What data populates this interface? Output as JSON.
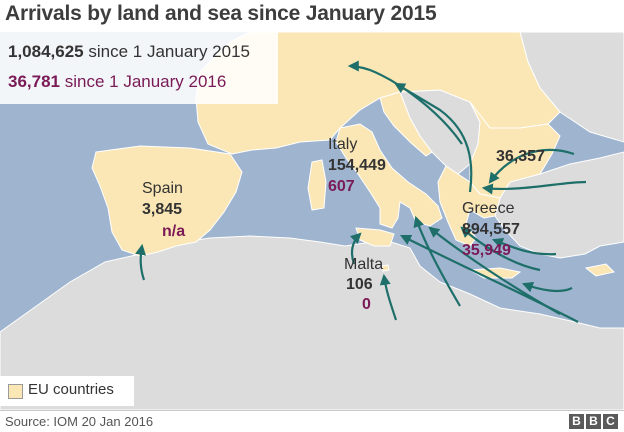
{
  "title": "Arrivals by land and sea since January 2015",
  "stats": {
    "total_2015_value": "1,084,625",
    "total_2015_text": "since 1 January 2015",
    "total_2016_value": "36,781",
    "total_2016_text": "since 1 January 2016"
  },
  "labels": {
    "spain": {
      "country": "Spain",
      "arrivals_2015": "3,845",
      "arrivals_2016": "n/a"
    },
    "italy": {
      "country": "Italy",
      "arrivals_2015": "154,449",
      "arrivals_2016": "607"
    },
    "greece": {
      "country": "Greece",
      "arrivals_2015": "894,557",
      "arrivals_2016": "35,949"
    },
    "malta": {
      "country": "Malta",
      "arrivals_2015": "106",
      "arrivals_2016": "0"
    },
    "bulgaria": {
      "arrivals_2015": "36,357"
    }
  },
  "legend": {
    "label": "EU countries"
  },
  "source": "Source: IOM 20 Jan 2016",
  "brand": [
    "B",
    "B",
    "C"
  ],
  "colors": {
    "sea": "#9fb4cf",
    "eu_land": "#fbe7b5",
    "non_eu_land": "#dcdcdc",
    "arrow": "#1e6f6a",
    "value_2016": "#7a1a56",
    "text": "#333333"
  }
}
